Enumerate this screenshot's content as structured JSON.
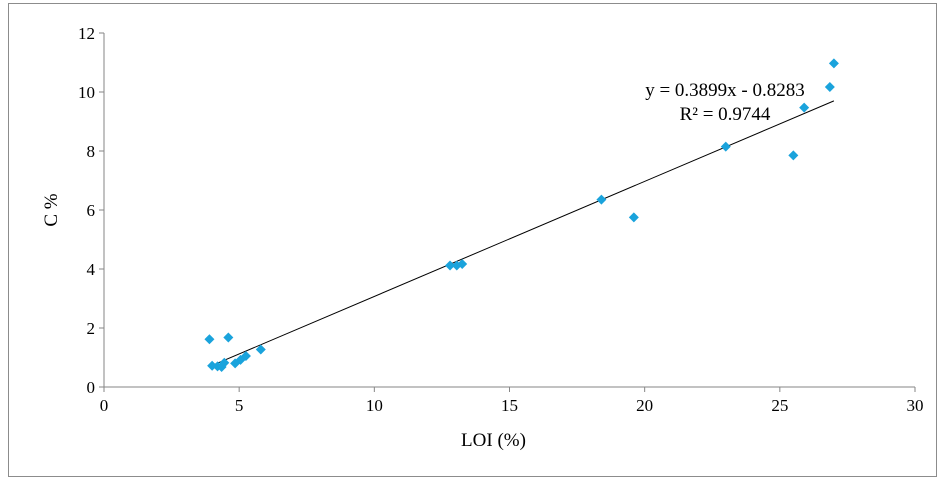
{
  "chart_data": {
    "type": "scatter",
    "xlabel": "LOI (%)",
    "ylabel": "C %",
    "xlim": [
      0,
      30
    ],
    "ylim": [
      0,
      12
    ],
    "x_ticks": [
      0,
      5,
      10,
      15,
      20,
      25,
      30
    ],
    "y_ticks": [
      0,
      2,
      4,
      6,
      8,
      10,
      12
    ],
    "grid": false,
    "legend": "none",
    "marker_color": "#1aa3dc",
    "trendline_color": "#000000",
    "series": [
      {
        "points": [
          {
            "x": 3.9,
            "y": 1.62
          },
          {
            "x": 4.6,
            "y": 1.68
          },
          {
            "x": 4.0,
            "y": 0.72
          },
          {
            "x": 4.2,
            "y": 0.7
          },
          {
            "x": 4.35,
            "y": 0.68
          },
          {
            "x": 4.45,
            "y": 0.82
          },
          {
            "x": 4.85,
            "y": 0.8
          },
          {
            "x": 5.05,
            "y": 0.92
          },
          {
            "x": 5.25,
            "y": 1.05
          },
          {
            "x": 5.8,
            "y": 1.27
          },
          {
            "x": 12.8,
            "y": 4.12
          },
          {
            "x": 13.05,
            "y": 4.12
          },
          {
            "x": 13.25,
            "y": 4.17
          },
          {
            "x": 18.4,
            "y": 6.35
          },
          {
            "x": 19.6,
            "y": 5.75
          },
          {
            "x": 23.0,
            "y": 8.15
          },
          {
            "x": 25.5,
            "y": 7.85
          },
          {
            "x": 25.9,
            "y": 9.47
          },
          {
            "x": 26.85,
            "y": 10.17
          },
          {
            "x": 27.0,
            "y": 10.97
          }
        ]
      }
    ],
    "trendline": {
      "slope": 0.3899,
      "intercept": -0.8283,
      "x_range": [
        4.0,
        27.0
      ],
      "equation_label": "y = 0.3899x - 0.8283",
      "r2_label": "R² = 0.9744"
    }
  }
}
